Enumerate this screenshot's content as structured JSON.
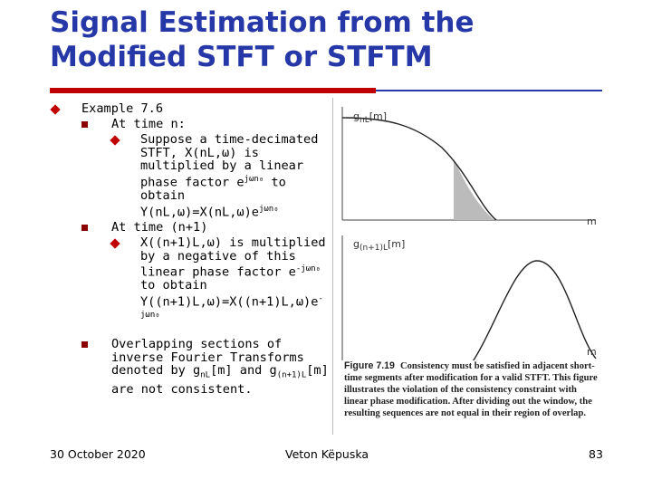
{
  "title": "Signal Estimation from the Modified STFT or STFTM",
  "items": [
    {
      "level": 1,
      "segments": [
        {
          "text": "Example 7.6"
        }
      ]
    },
    {
      "level": 2,
      "segments": [
        {
          "text": "At time n:"
        }
      ]
    },
    {
      "level": 3,
      "segments": [
        {
          "text": "Suppose a time-decimated STFT, X(nL,ω) is multiplied by a linear phase factor e"
        },
        {
          "sup": "jωn₀"
        },
        {
          "text": " to obtain Y(nL,ω)=X(nL,ω)e"
        },
        {
          "sup": "jωn₀"
        }
      ]
    },
    {
      "level": 2,
      "segments": [
        {
          "text": "At time (n+1)"
        }
      ]
    },
    {
      "level": 3,
      "segments": [
        {
          "text": "X((n+1)L,ω) is multiplied by a negative of this linear phase factor e"
        },
        {
          "sup": "-jωn₀"
        },
        {
          "text": " to obtain Y((n+1)L,ω)=X((n+1)L,ω)e"
        },
        {
          "sup": "-jωn₀"
        }
      ]
    },
    {
      "level": 2,
      "segments": [
        {
          "text": "Overlapping sections of inverse Fourier Transforms denoted by g"
        },
        {
          "sub": "nL"
        },
        {
          "text": "[m] and g"
        },
        {
          "sub": "(n+1)L"
        },
        {
          "text": "[m] are not consistent."
        }
      ]
    }
  ],
  "figure": {
    "top_label": {
      "base": "g",
      "sub": "nL",
      "tail": "[m]"
    },
    "top_axis": "m",
    "bottom_label": {
      "base": "g",
      "sub": "(n+1)L",
      "tail": "[m]"
    },
    "bottom_axis": "m",
    "caption_label": "Figure 7.19",
    "caption": "Consistency must be satisfied in adjacent short-time segments after modification for a valid STFT. This figure illustrates the violation of the consistency constraint with linear phase modification. After dividing out the window, the resulting sequences are not equal in their region of overlap."
  },
  "footer": {
    "date": "30 October 2020",
    "author": "Veton Këpuska",
    "page": "83"
  }
}
